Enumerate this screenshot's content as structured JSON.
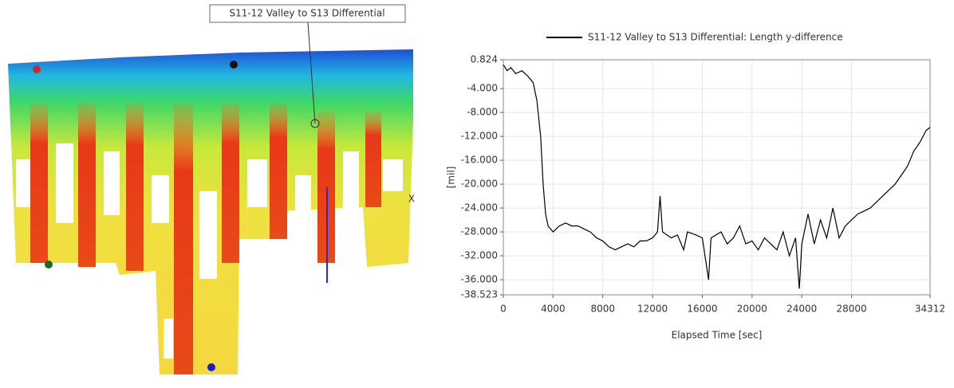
{
  "viewer": {
    "label": "S11-12 Valley to S13 Differential",
    "axis_label": "X"
  },
  "chart_data": {
    "type": "line",
    "xlabel": "Elapsed Time [sec]",
    "ylabel": "[mil]",
    "grid": true,
    "x": [
      0,
      300,
      600,
      1000,
      1500,
      2000,
      2400,
      2700,
      3000,
      3200,
      3400,
      3600,
      4000,
      4500,
      5000,
      5500,
      6000,
      6500,
      7000,
      7500,
      8000,
      8500,
      9000,
      9500,
      10000,
      10500,
      11000,
      11500,
      12000,
      12400,
      12600,
      12800,
      13500,
      14000,
      14500,
      14800,
      15500,
      16000,
      16500,
      16700,
      17500,
      18000,
      18500,
      19000,
      19500,
      20000,
      20500,
      21000,
      21500,
      22000,
      22500,
      23000,
      23500,
      23800,
      24000,
      24500,
      25000,
      25500,
      26000,
      26500,
      27000,
      27500,
      28000,
      28500,
      29000,
      29500,
      30000,
      30500,
      31000,
      31500,
      32000,
      32500,
      33000,
      33500,
      34000,
      34312
    ],
    "series": [
      {
        "name": "S11-12 Valley to S13 Differential: Length y-difference",
        "color": "#000000",
        "values": [
          0,
          -1,
          -0.5,
          -1.5,
          -1,
          -2,
          -3,
          -6,
          -12,
          -20,
          -25,
          -27,
          -28,
          -27,
          -26.5,
          -27,
          -27,
          -27.5,
          -28,
          -29,
          -29.5,
          -30.5,
          -31,
          -30.5,
          -30,
          -30.5,
          -29.5,
          -29.5,
          -29,
          -28,
          -22,
          -28,
          -29,
          -28.5,
          -31,
          -28,
          -28.5,
          -29,
          -36,
          -29,
          -28,
          -30,
          -29,
          -27,
          -30,
          -29.5,
          -31,
          -29,
          -30,
          -31,
          -28,
          -32,
          -29,
          -37.5,
          -30,
          -25,
          -30,
          -26,
          -29,
          -24,
          -29,
          -27,
          -26,
          -25,
          -24.5,
          -24,
          -23,
          -22,
          -21,
          -20,
          -18.5,
          -17,
          -14.5,
          -13,
          -11,
          -10.5
        ]
      }
    ],
    "xlim": [
      0,
      34312
    ],
    "xticks": [
      0,
      4000,
      8000,
      12000,
      16000,
      20000,
      24000,
      28000,
      34312
    ],
    "ylim": [
      -38.523,
      0.824
    ],
    "yticks": [
      0.824,
      {
        "value": -4,
        "label": "-4.000"
      },
      {
        "value": -8,
        "label": "-8.000"
      },
      {
        "value": -12,
        "label": "-12.000"
      },
      {
        "value": -16,
        "label": "-16.000"
      },
      {
        "value": -20,
        "label": "-20.000"
      },
      {
        "value": -24,
        "label": "-24.000"
      },
      {
        "value": -28,
        "label": "-28.000"
      },
      {
        "value": -32,
        "label": "-32.000"
      },
      {
        "value": -36,
        "label": "-36.000"
      },
      -38.523
    ]
  }
}
